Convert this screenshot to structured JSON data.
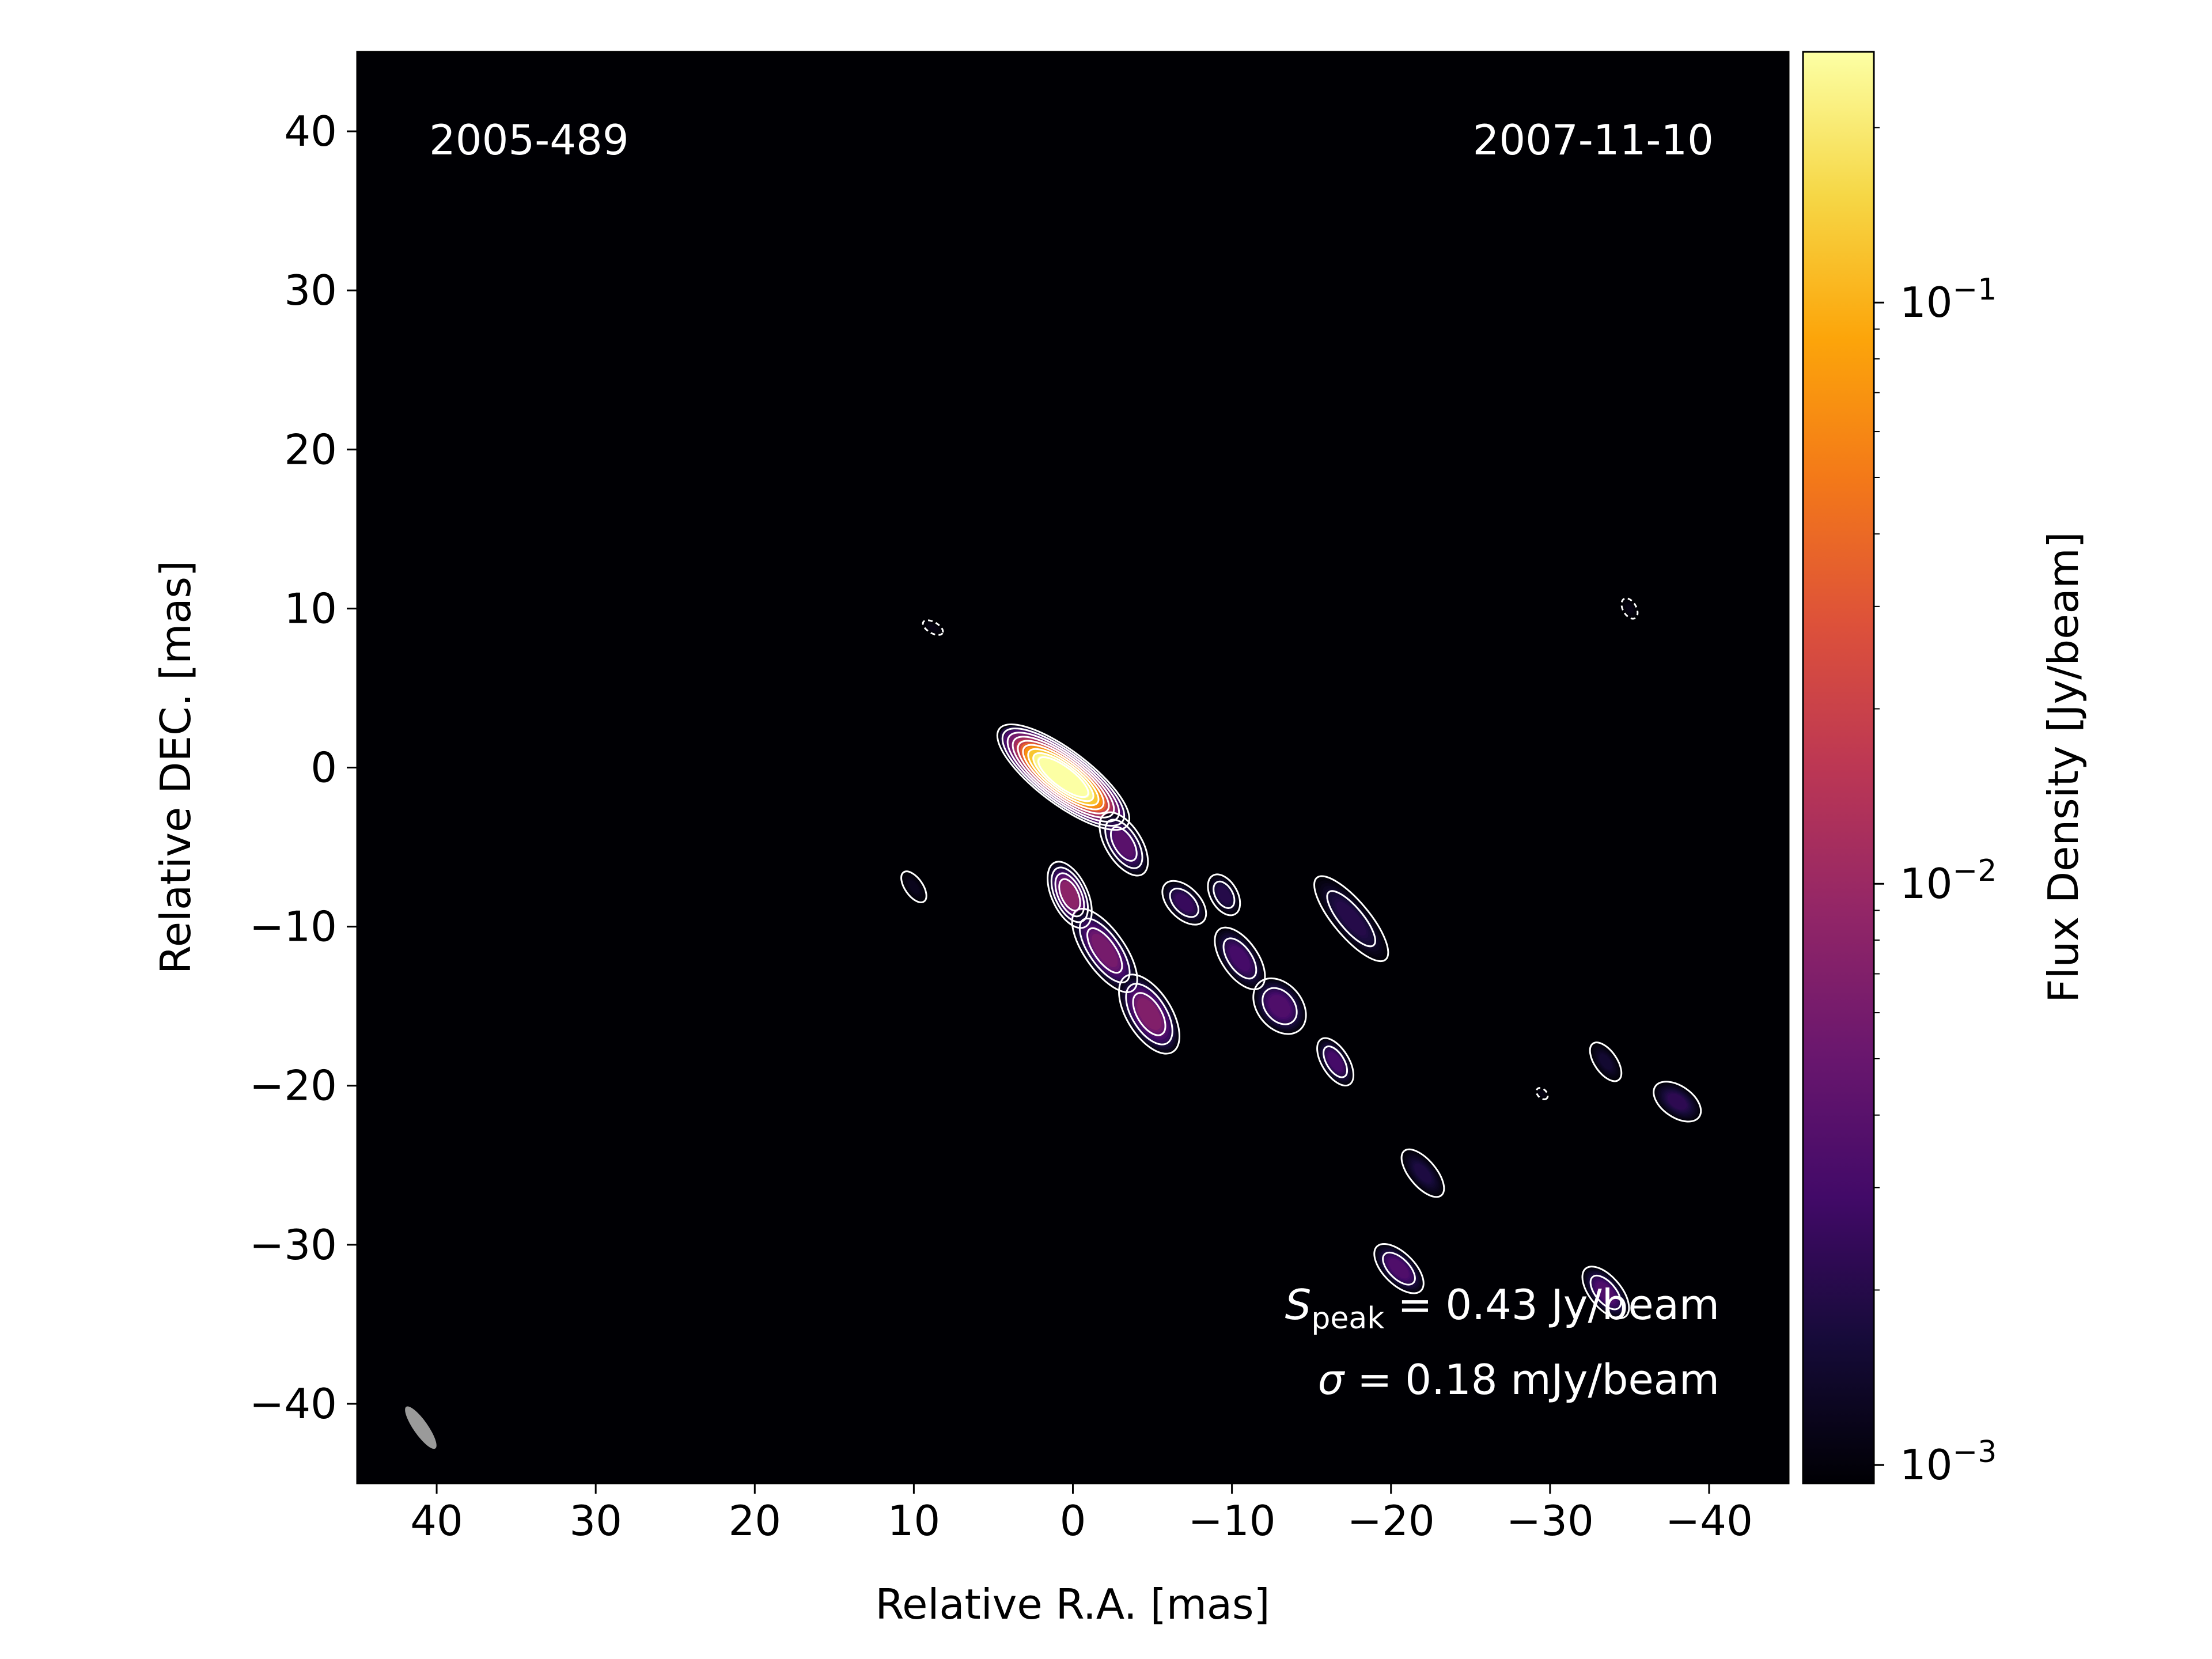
{
  "chart_data": {
    "type": "heatmap",
    "title": "",
    "source_name": "2005-489",
    "epoch": "2007-11-10",
    "xlabel": "Relative R.A. [mas]",
    "ylabel": "Relative DEC. [mas]",
    "xlim": [
      45,
      -45
    ],
    "ylim": [
      -45,
      45
    ],
    "x_ticks": [
      40,
      30,
      20,
      10,
      0,
      -10,
      -20,
      -30,
      -40
    ],
    "y_ticks": [
      40,
      30,
      20,
      10,
      0,
      -10,
      -20,
      -30,
      -40
    ],
    "x_tick_labels": [
      "40",
      "30",
      "20",
      "10",
      "0",
      "−10",
      "−20",
      "−30",
      "−40"
    ],
    "y_tick_labels": [
      "40",
      "30",
      "20",
      "10",
      "0",
      "−10",
      "−20",
      "−30",
      "−40"
    ],
    "colormap": "inferno",
    "colorbar": {
      "label": "Flux Density [Jy/beam]",
      "scale": "log",
      "range": [
        0.00093,
        0.27
      ],
      "ticks": [
        0.1,
        0.01,
        0.001
      ],
      "tick_labels": [
        {
          "base": "10",
          "exp": "−1"
        },
        {
          "base": "10",
          "exp": "−2"
        },
        {
          "base": "10",
          "exp": "−3"
        }
      ]
    },
    "annotations": {
      "speak": {
        "symbol": "S",
        "subscript": "peak",
        "value": " = 0.43 Jy/beam"
      },
      "sigma": {
        "symbol": "σ",
        "value": " = 0.18 mJy/beam"
      }
    },
    "beam": {
      "x": 41,
      "y": -41.5,
      "major_mas": 3.2,
      "minor_mas": 0.9,
      "pa_deg": -35
    },
    "components": [
      {
        "x": 0.6,
        "y": -0.6,
        "peak": 0.43,
        "sx": 3.6,
        "sy": 1.2,
        "angle": 37,
        "contours": 9
      },
      {
        "x": -3.2,
        "y": -4.8,
        "peak": 0.004,
        "sx": 1.6,
        "sy": 0.8,
        "angle": 58,
        "contours": 3
      },
      {
        "x": 0.2,
        "y": -8.0,
        "peak": 0.008,
        "sx": 1.6,
        "sy": 0.8,
        "angle": 65,
        "contours": 4
      },
      {
        "x": -2.0,
        "y": -11.5,
        "peak": 0.006,
        "sx": 2.2,
        "sy": 0.9,
        "angle": 55,
        "contours": 3
      },
      {
        "x": -4.8,
        "y": -15.5,
        "peak": 0.007,
        "sx": 2.0,
        "sy": 1.0,
        "angle": 58,
        "contours": 3
      },
      {
        "x": -7.0,
        "y": -8.5,
        "peak": 0.0025,
        "sx": 1.2,
        "sy": 0.7,
        "angle": 45,
        "contours": 2
      },
      {
        "x": -9.5,
        "y": -8.0,
        "peak": 0.002,
        "sx": 1.0,
        "sy": 0.6,
        "angle": 60,
        "contours": 2
      },
      {
        "x": -10.5,
        "y": -12.0,
        "peak": 0.003,
        "sx": 1.6,
        "sy": 0.8,
        "angle": 55,
        "contours": 2
      },
      {
        "x": -13.0,
        "y": -15.0,
        "peak": 0.0035,
        "sx": 1.4,
        "sy": 1.0,
        "angle": 50,
        "contours": 2
      },
      {
        "x": -16.5,
        "y": -18.5,
        "peak": 0.003,
        "sx": 1.2,
        "sy": 0.6,
        "angle": 58,
        "contours": 2
      },
      {
        "x": -17.5,
        "y": -9.5,
        "peak": 0.002,
        "sx": 2.4,
        "sy": 0.8,
        "angle": 50,
        "contours": 2
      },
      {
        "x": -22.0,
        "y": -25.5,
        "peak": 0.0018,
        "sx": 1.3,
        "sy": 0.6,
        "angle": 50,
        "contours": 1
      },
      {
        "x": -20.5,
        "y": -31.5,
        "peak": 0.0035,
        "sx": 1.4,
        "sy": 0.7,
        "angle": 45,
        "contours": 2
      },
      {
        "x": -33.5,
        "y": -33.0,
        "peak": 0.0035,
        "sx": 1.4,
        "sy": 0.7,
        "angle": 50,
        "contours": 2
      },
      {
        "x": -38.0,
        "y": -21.0,
        "peak": 0.0022,
        "sx": 1.2,
        "sy": 0.7,
        "angle": 35,
        "contours": 1
      },
      {
        "x": -33.5,
        "y": -18.5,
        "peak": 0.0015,
        "sx": 1.0,
        "sy": 0.5,
        "angle": 55,
        "contours": 1
      },
      {
        "x": 10.0,
        "y": -7.5,
        "peak": 0.0012,
        "sx": 0.8,
        "sy": 0.4,
        "angle": 55,
        "contours": 1
      },
      {
        "x": 8.8,
        "y": 8.8,
        "peak": 0.0011,
        "sx": 0.5,
        "sy": 0.25,
        "angle": 30,
        "contours": 1
      },
      {
        "x": -35.0,
        "y": 10.0,
        "peak": 0.0011,
        "sx": 0.5,
        "sy": 0.3,
        "angle": 60,
        "contours": 1
      },
      {
        "x": -29.5,
        "y": -20.5,
        "peak": 0.0011,
        "sx": 0.3,
        "sy": 0.2,
        "angle": 45,
        "contours": 1
      }
    ]
  }
}
